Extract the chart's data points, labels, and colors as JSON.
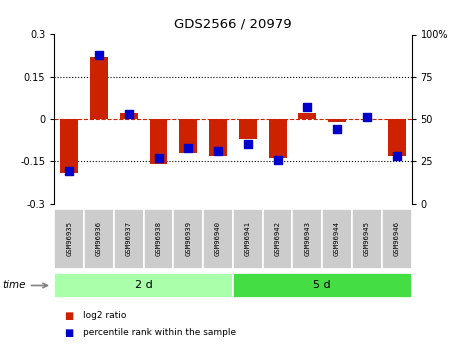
{
  "title": "GDS2566 / 20979",
  "samples": [
    "GSM96935",
    "GSM96936",
    "GSM96937",
    "GSM96938",
    "GSM96939",
    "GSM96940",
    "GSM96941",
    "GSM96942",
    "GSM96943",
    "GSM96944",
    "GSM96945",
    "GSM96946"
  ],
  "log2_ratio": [
    -0.19,
    0.22,
    0.02,
    -0.16,
    -0.12,
    -0.13,
    -0.07,
    -0.14,
    0.02,
    -0.01,
    0.0,
    -0.13
  ],
  "percentile_rank": [
    19,
    88,
    53,
    27,
    33,
    31,
    35,
    26,
    57,
    44,
    51,
    28
  ],
  "groups": [
    {
      "label": "2 d",
      "start": 0,
      "end": 6,
      "color": "#aaffaa"
    },
    {
      "label": "5 d",
      "start": 6,
      "end": 12,
      "color": "#44dd44"
    }
  ],
  "ylim_left": [
    -0.3,
    0.3
  ],
  "ylim_right": [
    0,
    100
  ],
  "yticks_left": [
    -0.3,
    -0.15,
    0,
    0.15,
    0.3
  ],
  "yticks_right": [
    0,
    25,
    50,
    75,
    100
  ],
  "bar_color": "#cc2200",
  "dot_color": "#0000cc",
  "bg_color": "#ffffff",
  "plot_bg": "#ffffff",
  "tick_label_area_color": "#cccccc",
  "time_label": "time",
  "legend_items": [
    {
      "label": "log2 ratio",
      "color": "#cc2200"
    },
    {
      "label": "percentile rank within the sample",
      "color": "#0000cc"
    }
  ]
}
